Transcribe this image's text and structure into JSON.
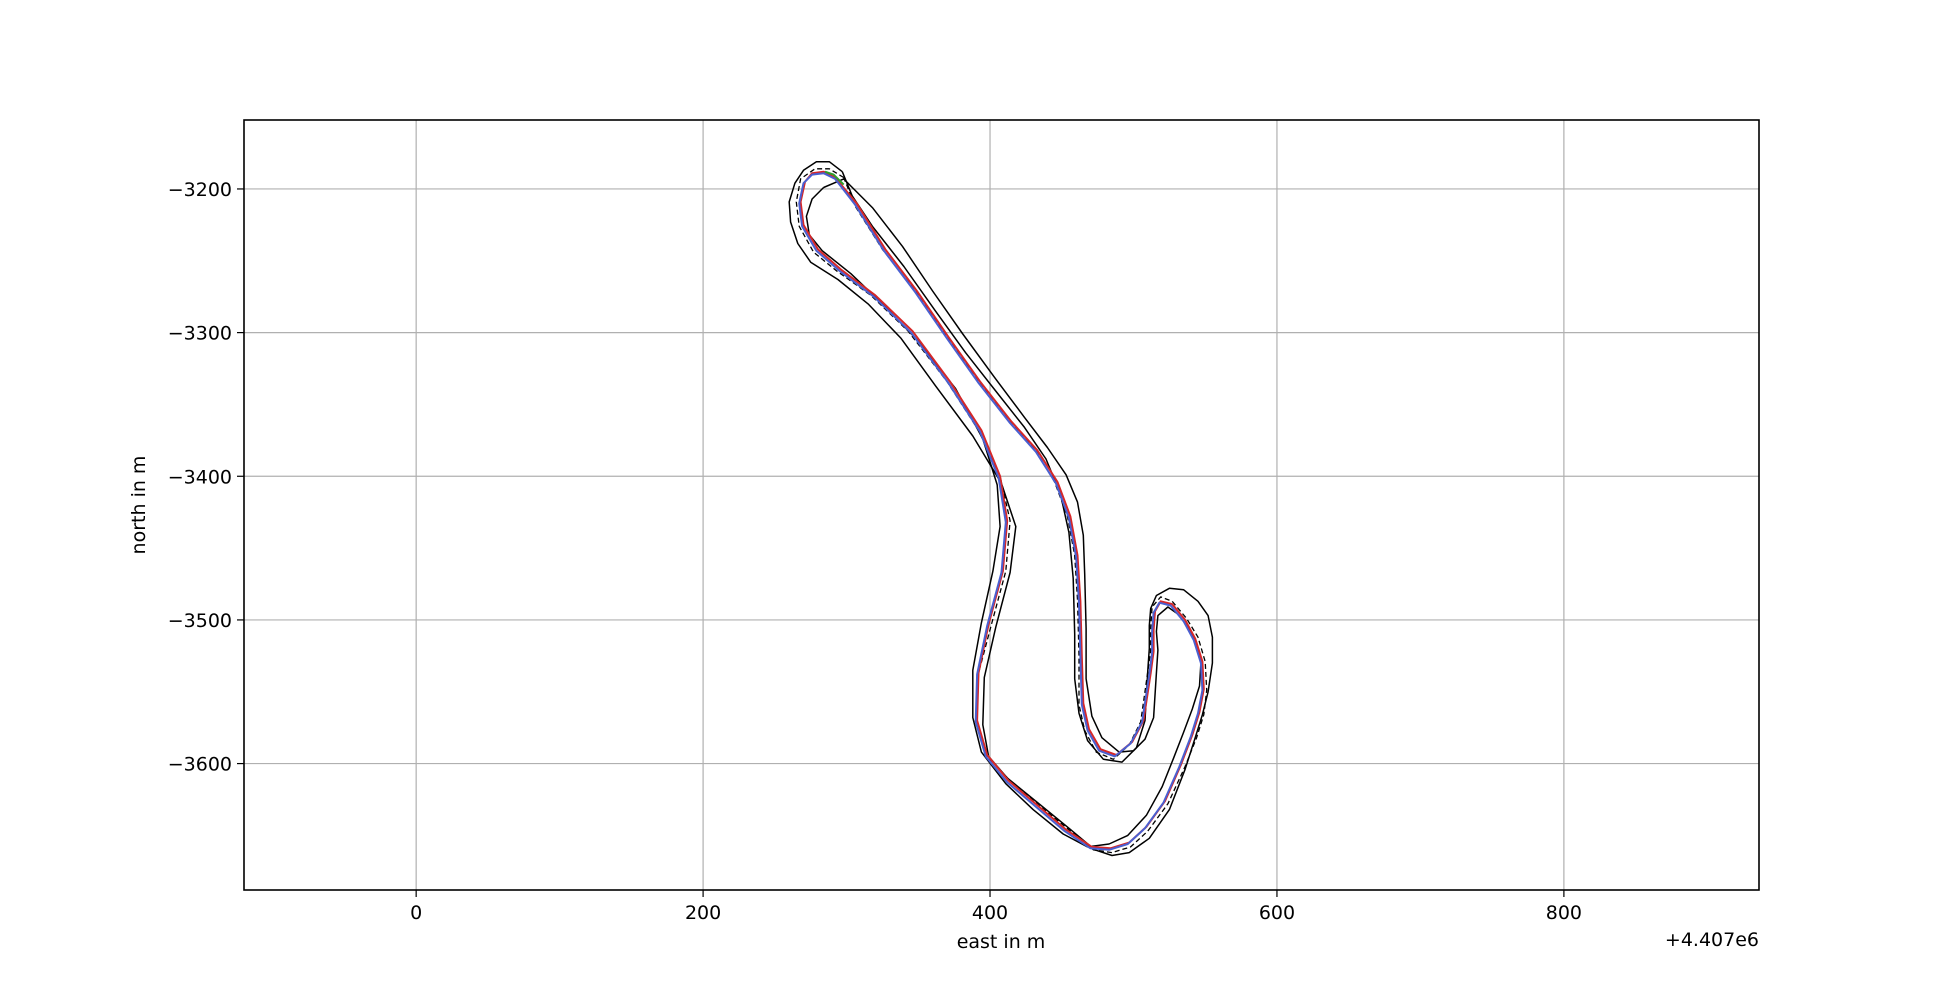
{
  "chart_data": {
    "type": "line",
    "title": "",
    "xlabel": "east in m",
    "ylabel": "north in m",
    "x_offset_label": "+4.407e6",
    "xlim": [
      -120,
      936
    ],
    "ylim": [
      -3688,
      -3152
    ],
    "xticks": [
      0,
      200,
      400,
      600,
      800
    ],
    "xtick_labels": [
      "0",
      "200",
      "400",
      "600",
      "800"
    ],
    "yticks": [
      -3200,
      -3300,
      -3400,
      -3500,
      -3600
    ],
    "ytick_labels": [
      "−3200",
      "−3300",
      "−3400",
      "−3500",
      "−3600"
    ],
    "grid": true,
    "series": [
      {
        "style": "solid",
        "color": "#000000",
        "x": [
          297,
          288,
          279,
          270,
          264,
          260,
          261,
          266,
          275,
          294,
          315,
          338,
          362,
          388,
          408,
          418,
          414,
          404,
          396,
          395,
          399,
          412,
          433,
          455,
          473,
          485,
          497,
          511,
          525,
          536,
          543,
          548,
          552,
          555,
          555,
          552,
          545,
          535,
          525,
          516,
          512,
          511,
          511,
          510,
          508,
          502,
          492,
          479,
          468,
          462,
          459,
          459,
          458,
          455,
          449,
          439,
          424,
          405,
          383,
          362,
          340,
          318,
          304,
          297
        ],
        "y": [
          -3188,
          -3181,
          -3181,
          -3187,
          -3196,
          -3209,
          -3223,
          -3238,
          -3251,
          -3263,
          -3280,
          -3304,
          -3337,
          -3372,
          -3405,
          -3435,
          -3467,
          -3505,
          -3540,
          -3573,
          -3595,
          -3610,
          -3627,
          -3645,
          -3660,
          -3664,
          -3662,
          -3652,
          -3632,
          -3604,
          -3582,
          -3566,
          -3550,
          -3530,
          -3512,
          -3497,
          -3487,
          -3479,
          -3478,
          -3483,
          -3492,
          -3504,
          -3520,
          -3535,
          -3570,
          -3589,
          -3599,
          -3597,
          -3584,
          -3565,
          -3541,
          -3510,
          -3471,
          -3439,
          -3412,
          -3388,
          -3366,
          -3342,
          -3314,
          -3285,
          -3254,
          -3226,
          -3205,
          -3188
        ]
      },
      {
        "style": "solid",
        "color": "#000000",
        "x": [
          284,
          276,
          272,
          274,
          283,
          303,
          326,
          350,
          376,
          395,
          405,
          407,
          402,
          394,
          388,
          388,
          394,
          411,
          430,
          451,
          468,
          483,
          496,
          509,
          520,
          528,
          535,
          541,
          546,
          547,
          544,
          538,
          531,
          524,
          517,
          516,
          517,
          516,
          514,
          508,
          500,
          490,
          478,
          471,
          467,
          467,
          466,
          465,
          461,
          453,
          440,
          424,
          403,
          381,
          360,
          339,
          318,
          298,
          284
        ],
        "y": [
          -3199,
          -3207,
          -3219,
          -3232,
          -3243,
          -3259,
          -3281,
          -3306,
          -3339,
          -3374,
          -3406,
          -3435,
          -3466,
          -3502,
          -3535,
          -3568,
          -3592,
          -3614,
          -3632,
          -3649,
          -3658,
          -3656,
          -3650,
          -3636,
          -3616,
          -3596,
          -3578,
          -3562,
          -3546,
          -3530,
          -3517,
          -3505,
          -3496,
          -3491,
          -3497,
          -3508,
          -3521,
          -3537,
          -3568,
          -3583,
          -3591,
          -3592,
          -3582,
          -3567,
          -3541,
          -3506,
          -3468,
          -3441,
          -3418,
          -3399,
          -3380,
          -3359,
          -3331,
          -3301,
          -3271,
          -3240,
          -3213,
          -3193,
          -3199
        ]
      },
      {
        "style": "dashed",
        "color": "#000000",
        "x": [
          298,
          288,
          278,
          268,
          265,
          267,
          277,
          293,
          317,
          343,
          370,
          392,
          407,
          414,
          411,
          401,
          392,
          391,
          398,
          414,
          434,
          455,
          472,
          485,
          498,
          510,
          524,
          536,
          544,
          549,
          551,
          550,
          545,
          537,
          527,
          519,
          513,
          512,
          512,
          510,
          505,
          497,
          486,
          474,
          466,
          462,
          462,
          461,
          459,
          454,
          445,
          432,
          414,
          392,
          370,
          348,
          325,
          306,
          298
        ],
        "y": [
          -3192,
          -3186,
          -3186,
          -3193,
          -3209,
          -3226,
          -3244,
          -3257,
          -3274,
          -3299,
          -3334,
          -3368,
          -3400,
          -3431,
          -3466,
          -3503,
          -3537,
          -3570,
          -3595,
          -3612,
          -3629,
          -3646,
          -3660,
          -3662,
          -3658,
          -3647,
          -3628,
          -3602,
          -3582,
          -3566,
          -3549,
          -3529,
          -3512,
          -3499,
          -3487,
          -3484,
          -3491,
          -3505,
          -3521,
          -3536,
          -3571,
          -3587,
          -3597,
          -3592,
          -3577,
          -3559,
          -3525,
          -3486,
          -3455,
          -3428,
          -3404,
          -3382,
          -3362,
          -3334,
          -3303,
          -3271,
          -3242,
          -3212,
          -3192
        ]
      },
      {
        "style": "solid",
        "color": "#d62728",
        "x": [
          292,
          284,
          276,
          271,
          268,
          270,
          280,
          296,
          320,
          346,
          372,
          394,
          407,
          412,
          409,
          399,
          392,
          391,
          398,
          413,
          433,
          453,
          471,
          484,
          497,
          509,
          522,
          533,
          541,
          546,
          549,
          548,
          543,
          536,
          527,
          519,
          515,
          514,
          514,
          512,
          507,
          499,
          488,
          477,
          469,
          465,
          464,
          463,
          461,
          456,
          447,
          433,
          415,
          393,
          371,
          349,
          327,
          307,
          292
        ],
        "y": [
          -3192,
          -3188,
          -3189,
          -3195,
          -3209,
          -3225,
          -3242,
          -3256,
          -3274,
          -3299,
          -3334,
          -3368,
          -3400,
          -3431,
          -3466,
          -3503,
          -3537,
          -3570,
          -3594,
          -3612,
          -3629,
          -3646,
          -3658,
          -3659,
          -3655,
          -3644,
          -3626,
          -3601,
          -3580,
          -3564,
          -3548,
          -3529,
          -3513,
          -3500,
          -3489,
          -3487,
          -3494,
          -3507,
          -3522,
          -3537,
          -3570,
          -3585,
          -3594,
          -3590,
          -3576,
          -3558,
          -3525,
          -3487,
          -3455,
          -3428,
          -3404,
          -3382,
          -3362,
          -3334,
          -3303,
          -3271,
          -3242,
          -3210,
          -3192
        ]
      },
      {
        "style": "solid",
        "color": "#4a5fd0",
        "x": [
          292,
          284,
          276,
          270,
          267,
          269,
          279,
          295,
          319,
          345,
          371,
          393,
          406,
          411,
          408,
          398,
          391,
          390,
          397,
          412,
          432,
          452,
          470,
          483,
          496,
          508,
          521,
          532,
          540,
          545,
          548,
          547,
          542,
          535,
          526,
          518,
          514,
          513,
          513,
          511,
          506,
          498,
          487,
          476,
          468,
          464,
          463,
          462,
          460,
          455,
          446,
          432,
          414,
          392,
          370,
          348,
          326,
          306,
          292
        ],
        "y": [
          -3193,
          -3189,
          -3190,
          -3196,
          -3210,
          -3226,
          -3243,
          -3257,
          -3275,
          -3300,
          -3335,
          -3369,
          -3401,
          -3432,
          -3467,
          -3504,
          -3538,
          -3571,
          -3595,
          -3613,
          -3630,
          -3647,
          -3659,
          -3660,
          -3656,
          -3645,
          -3627,
          -3602,
          -3581,
          -3565,
          -3549,
          -3530,
          -3514,
          -3501,
          -3490,
          -3488,
          -3495,
          -3508,
          -3523,
          -3538,
          -3571,
          -3586,
          -3595,
          -3591,
          -3577,
          -3559,
          -3526,
          -3488,
          -3456,
          -3429,
          -3405,
          -3383,
          -3363,
          -3335,
          -3304,
          -3272,
          -3243,
          -3211,
          -3193
        ]
      },
      {
        "style": "solid",
        "color": "#2ca02c",
        "x": [
          285,
          291,
          298
        ],
        "y": [
          -3188,
          -3190,
          -3197
        ]
      }
    ]
  }
}
